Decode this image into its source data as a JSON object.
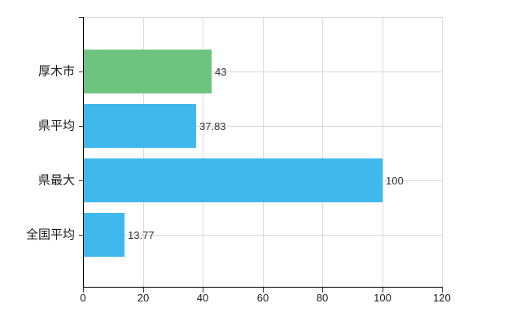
{
  "chart_data": {
    "type": "bar",
    "orientation": "horizontal",
    "categories": [
      "厚木市",
      "県平均",
      "県最大",
      "全国平均"
    ],
    "values": [
      43,
      37.83,
      100,
      13.77
    ],
    "value_labels": [
      "43",
      "37.83",
      "100",
      "13.77"
    ],
    "bar_colors": [
      "#6ec47f",
      "#41b8ec",
      "#41b8ec",
      "#41b8ec"
    ],
    "xlim": [
      0,
      120
    ],
    "x_ticks": [
      0,
      20,
      40,
      60,
      80,
      100,
      120
    ],
    "x_tick_labels": [
      "0",
      "20",
      "40",
      "60",
      "80",
      "100",
      "120"
    ],
    "grid": true,
    "legend": false
  },
  "colors": {
    "bar_green": "#6ec47f",
    "bar_blue": "#41b8ec",
    "gridline": "#d9d9d9",
    "axis": "#000000",
    "text": "#333333",
    "background": "#ffffff"
  }
}
